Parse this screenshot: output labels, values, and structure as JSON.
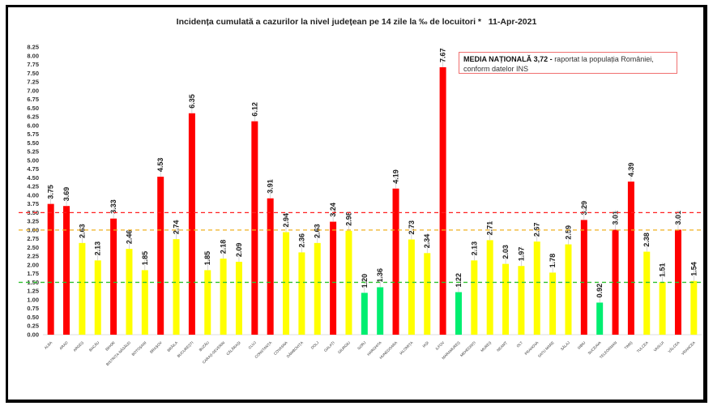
{
  "chart_data": {
    "type": "bar",
    "title": "Incidența cumulată a cazurilor la nivel județean pe 14 zile la ‰ de locuitori *",
    "date": "11-Apr-2021",
    "annotation": {
      "bold": "MEDIA NAȚIONALĂ  3,72 -",
      "text": " raportat la populația României, conform datelor INS"
    },
    "xlabel": "",
    "ylabel": "",
    "ylim": [
      0,
      8.25
    ],
    "ytick_step": 0.25,
    "grid": false,
    "thresholds": [
      {
        "value": 3.5,
        "color": "#ff2020"
      },
      {
        "value": 3.0,
        "color": "#f0b020"
      },
      {
        "value": 1.5,
        "color": "#30c030"
      }
    ],
    "colors": {
      "red": "#ff0000",
      "yellow": "#ffff00",
      "green": "#00ee70"
    },
    "categories": [
      "ALBA",
      "ARAD",
      "ARGEȘ",
      "BACĂU",
      "BIHOR",
      "BISTRIȚA-NĂSĂUD",
      "BOTOȘANI",
      "BRAȘOV",
      "BRĂILA",
      "BUCUREȘTI",
      "BUZĂU",
      "CARAȘ-SEVERIN",
      "CĂLĂRAȘI",
      "CLUJ",
      "CONSTANȚA",
      "COVASNA",
      "DÂMBOVIȚA",
      "DOLJ",
      "GALAȚI",
      "GIURGIU",
      "GORJ",
      "HARGHITA",
      "HUNEDOARA",
      "IALOMIȚA",
      "IAȘI",
      "ILFOV",
      "MARAMUREȘ",
      "MEHEDINȚI",
      "MUREȘ",
      "NEAMȚ",
      "OLT",
      "PRAHOVA",
      "SATU MARE",
      "SĂLAJ",
      "SIBIU",
      "SUCEAVA",
      "TELEORMAN",
      "TIMIȘ",
      "TULCEA",
      "VASLUI",
      "VÂLCEA",
      "VRANCEA"
    ],
    "values": [
      3.75,
      3.69,
      2.63,
      2.13,
      3.33,
      2.46,
      1.85,
      4.53,
      2.74,
      6.35,
      1.85,
      2.18,
      2.09,
      6.12,
      3.91,
      2.94,
      2.36,
      2.63,
      3.24,
      2.98,
      1.2,
      1.36,
      4.19,
      2.73,
      2.34,
      7.67,
      1.22,
      2.13,
      2.71,
      2.03,
      1.97,
      2.67,
      1.78,
      2.59,
      3.29,
      0.92,
      3.01,
      4.39,
      2.38,
      1.51,
      3.01,
      1.54
    ]
  }
}
